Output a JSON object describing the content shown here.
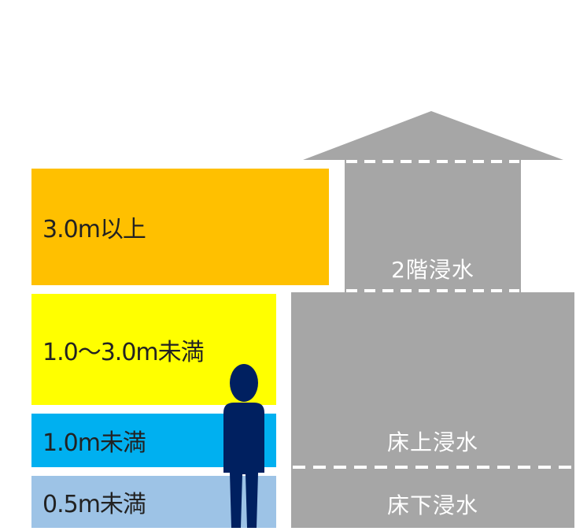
{
  "depth_bands": [
    {
      "label": "3.0m以上",
      "color": "#ffc000"
    },
    {
      "label": "1.0〜3.0m未満",
      "color": "#ffff00"
    },
    {
      "label": "1.0m未満",
      "color": "#00b0f0"
    },
    {
      "label": "0.5m未満",
      "color": "#9dc3e6"
    }
  ],
  "house": {
    "second_floor_label": "2階浸水",
    "above_floor_label": "床上浸水",
    "below_floor_label": "床下浸水",
    "color": "#a6a6a6",
    "roof_color": "#a6a6a6",
    "dash_color": "#ffffff"
  },
  "person": {
    "icon": "person-silhouette-icon",
    "color": "#002060"
  }
}
